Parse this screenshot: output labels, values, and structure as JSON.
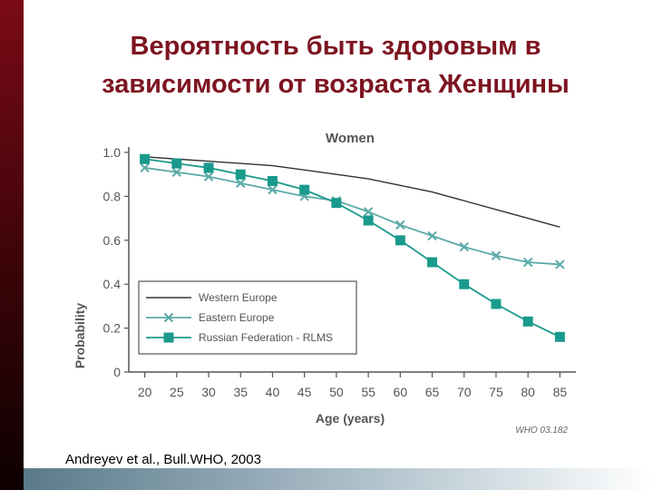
{
  "slide": {
    "title_line1": "Вероятность быть здоровым в",
    "title_line2": "зависимости от возраста Женщины",
    "source": "Andreyev et al., Bull.WHO, 2003",
    "accent_color": "#7d1420",
    "sidebar_color": "#5a0610"
  },
  "chart_data": {
    "type": "line",
    "title": "Women",
    "xlabel": "Age (years)",
    "ylabel": "Probability",
    "x": [
      20,
      25,
      30,
      35,
      40,
      45,
      50,
      55,
      60,
      65,
      70,
      75,
      80,
      85
    ],
    "xlim": [
      17.5,
      87.5
    ],
    "ylim": [
      0,
      1.0
    ],
    "yticks": [
      "0",
      "0.2",
      "0.4",
      "0.6",
      "0.8",
      "1.0"
    ],
    "watermark": "WHO 03.182",
    "legend_position": "bottom-left",
    "series": [
      {
        "name": "Western Europe",
        "marker": "none",
        "color": "#333333",
        "values": [
          0.98,
          0.97,
          0.96,
          0.95,
          0.94,
          0.92,
          0.9,
          0.88,
          0.85,
          0.82,
          0.78,
          0.74,
          0.7,
          0.66
        ]
      },
      {
        "name": "Eastern Europe",
        "marker": "x",
        "color": "#5aaaa8",
        "values": [
          0.93,
          0.91,
          0.89,
          0.86,
          0.83,
          0.8,
          0.78,
          0.73,
          0.67,
          0.62,
          0.57,
          0.53,
          0.5,
          0.49
        ]
      },
      {
        "name": "Russian Federation - RLMS",
        "marker": "square",
        "color": "#1a9a8c",
        "values": [
          0.97,
          0.95,
          0.93,
          0.9,
          0.87,
          0.83,
          0.77,
          0.69,
          0.6,
          0.5,
          0.4,
          0.31,
          0.23,
          0.16
        ]
      }
    ]
  }
}
